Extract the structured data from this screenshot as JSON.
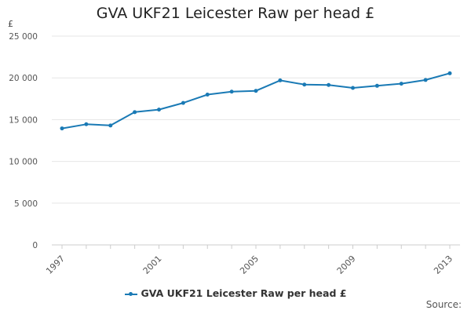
{
  "chart_data": {
    "type": "line",
    "title": "GVA UKF21 Leicester Raw per head £",
    "ylabel": "£",
    "xlabel": "",
    "x": [
      1997,
      1998,
      1999,
      2000,
      2001,
      2002,
      2003,
      2004,
      2005,
      2006,
      2007,
      2008,
      2009,
      2010,
      2011,
      2012,
      2013
    ],
    "x_tick_labels": [
      "1997",
      "2001",
      "2005",
      "2009",
      "2013"
    ],
    "x_tick_values": [
      1997,
      2001,
      2005,
      2009,
      2013
    ],
    "y_tick_labels": [
      "0",
      "5 000",
      "10 000",
      "15 000",
      "20 000",
      "25 000"
    ],
    "y_tick_values": [
      0,
      5000,
      10000,
      15000,
      20000,
      25000
    ],
    "ylim": [
      0,
      25000
    ],
    "series": [
      {
        "name": "GVA UKF21 Leicester Raw per head £",
        "color": "#1a7ab5",
        "values": [
          13950,
          14450,
          14300,
          15900,
          16200,
          17000,
          18000,
          18350,
          18450,
          19700,
          19200,
          19150,
          18800,
          19050,
          19300,
          19750,
          20550
        ]
      }
    ],
    "legend_position": "bottom",
    "grid": true
  },
  "footer": {
    "source_label": "Source:"
  }
}
